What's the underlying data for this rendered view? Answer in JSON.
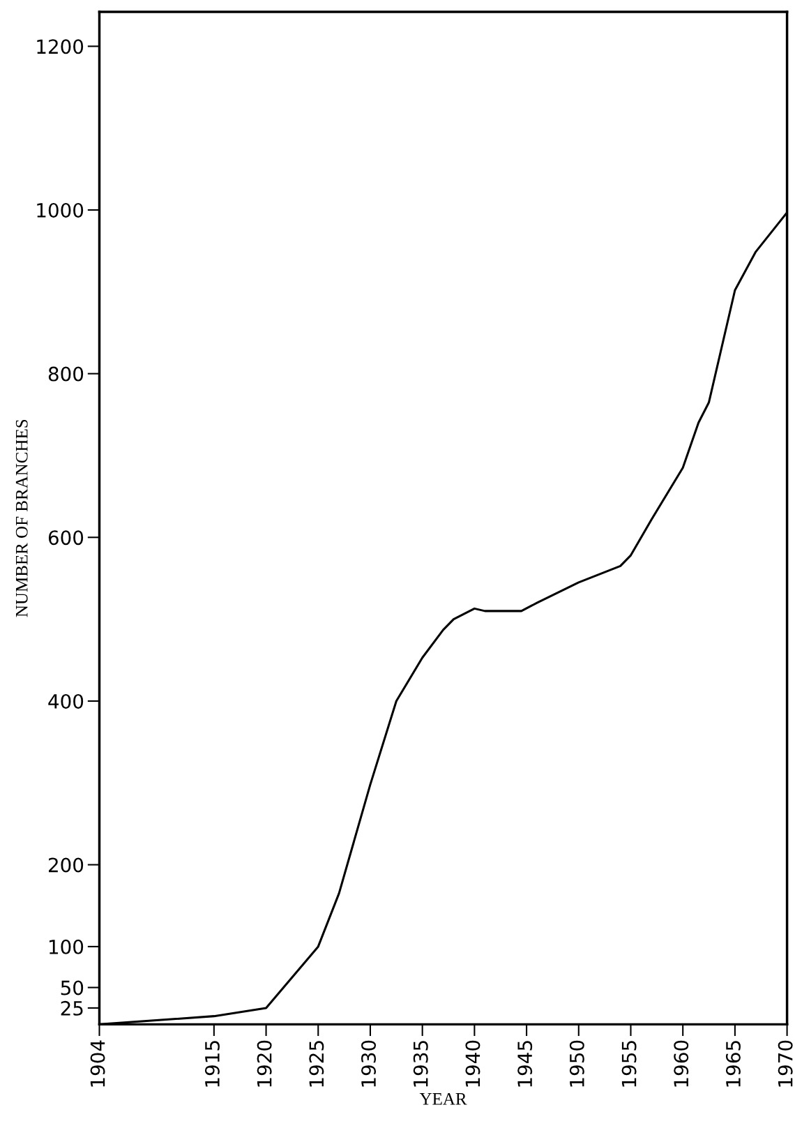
{
  "chart_data": {
    "type": "line",
    "xlabel": "YEAR",
    "ylabel": "NUMBER OF BRANCHES",
    "x": [
      1904,
      1915,
      1920,
      1925,
      1927,
      1930,
      1932.5,
      1935,
      1937,
      1938,
      1940,
      1941,
      1944.5,
      1946,
      1950,
      1954,
      1955,
      1957,
      1960,
      1961.5,
      1962.5,
      1965,
      1967,
      1970
    ],
    "series": [
      {
        "color": "#000000",
        "values": [
          5,
          15,
          25,
          100,
          165,
          298,
          400,
          453,
          487,
          500,
          513,
          510,
          510,
          520,
          545,
          565,
          578,
          622,
          685,
          740,
          765,
          902,
          949,
          997
        ]
      }
    ],
    "xlim": [
      1904,
      1970
    ],
    "xticks": [
      1904,
      1915,
      1920,
      1925,
      1930,
      1935,
      1940,
      1945,
      1950,
      1955,
      1960,
      1965,
      1970
    ],
    "ylim": [
      5,
      1242
    ],
    "yticks": [
      25,
      50,
      100,
      200,
      400,
      600,
      800,
      1000,
      1200
    ],
    "grid": false,
    "legend": false,
    "marker": "none",
    "line_style": "solid"
  }
}
